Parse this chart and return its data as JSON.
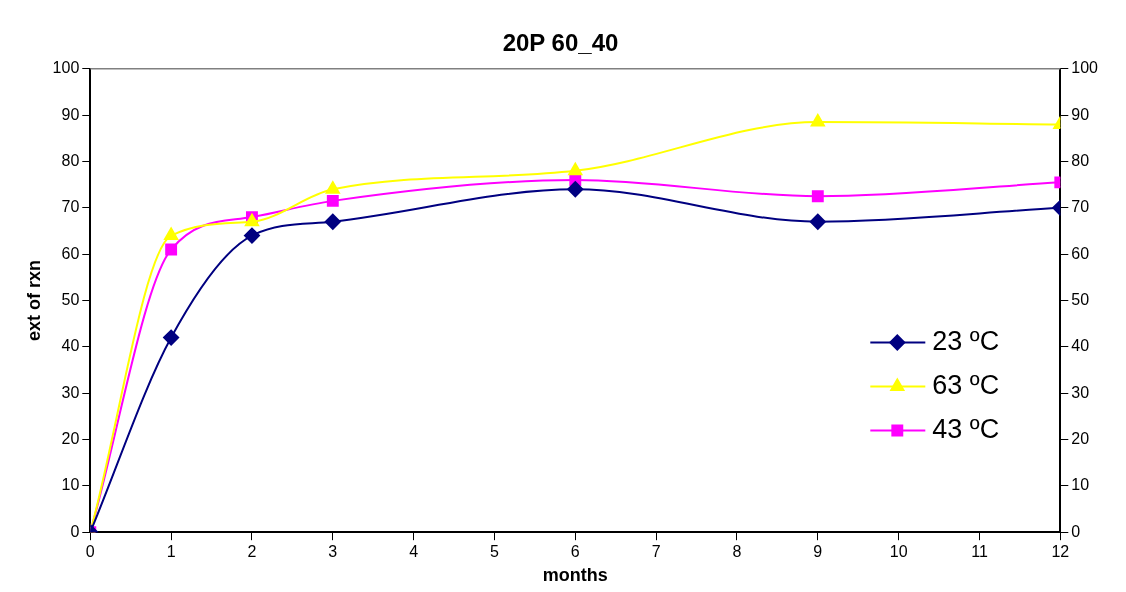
{
  "chart_data": {
    "type": "line",
    "title": "20P 60_40",
    "xlabel": "months",
    "ylabel": "ext of rxn",
    "x": [
      0,
      1,
      2,
      3,
      6,
      9,
      12
    ],
    "series": [
      {
        "name": "23 ºC",
        "color": "#000080",
        "marker": "diamond",
        "values": [
          0,
          42,
          64,
          67,
          74,
          67,
          70
        ]
      },
      {
        "name": "63 ºC",
        "color": "#ffff00",
        "marker": "triangle",
        "values": [
          0,
          64,
          67,
          74,
          78,
          88.5,
          88
        ]
      },
      {
        "name": "43 ºC",
        "color": "#ff00ff",
        "marker": "square",
        "values": [
          0,
          61,
          68,
          71.5,
          76,
          72.5,
          75.5
        ]
      }
    ],
    "xlim": [
      0,
      12
    ],
    "xticks": [
      0,
      1,
      2,
      3,
      4,
      5,
      6,
      7,
      8,
      9,
      10,
      11,
      12
    ],
    "ylim": [
      0,
      100
    ],
    "yticks": [
      0,
      10,
      20,
      30,
      40,
      50,
      60,
      70,
      80,
      90,
      100
    ],
    "y2lim": [
      0,
      100
    ],
    "y2ticks": [
      0,
      10,
      20,
      30,
      40,
      50,
      60,
      70,
      80,
      90,
      100
    ],
    "grid": false,
    "legend": "right",
    "line_style": "solid"
  }
}
